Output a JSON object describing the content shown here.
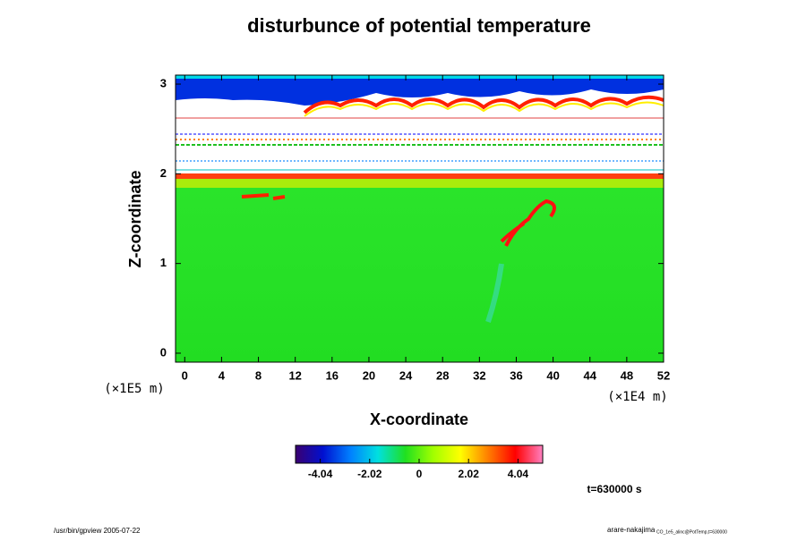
{
  "chart_data": {
    "type": "heatmap",
    "title": "disturbunce of potential temperature",
    "xlabel": "X-coordinate",
    "ylabel": "Z-coordinate",
    "xunit": "(×1E4 m)",
    "yunit": "(×1E5 m)",
    "xlim": [
      -1,
      52
    ],
    "xticks": [
      0,
      4,
      8,
      12,
      16,
      20,
      24,
      28,
      32,
      36,
      40,
      44,
      48,
      52
    ],
    "ylim": [
      -0.1,
      3.1
    ],
    "yticks": [
      0,
      1,
      2,
      3
    ],
    "colorbar": {
      "clim": [
        -5.05,
        5.05
      ],
      "ticks": [
        -4.04,
        -2.02,
        0,
        2.02,
        4.04
      ],
      "colormap": [
        "#3a0070",
        "#0010d0",
        "#0080ff",
        "#00e0e0",
        "#20e020",
        "#a0ff00",
        "#ffff00",
        "#ff8000",
        "#ff0000",
        "#ff80c0"
      ]
    },
    "annotation": "t=630000 s",
    "footer_left": "/usr/bin/gpview 2005-07-22",
    "footer_right": "arare-nakajima",
    "footer_right_small": "CO_1e5_alinc@PotTemp,t=630000"
  }
}
